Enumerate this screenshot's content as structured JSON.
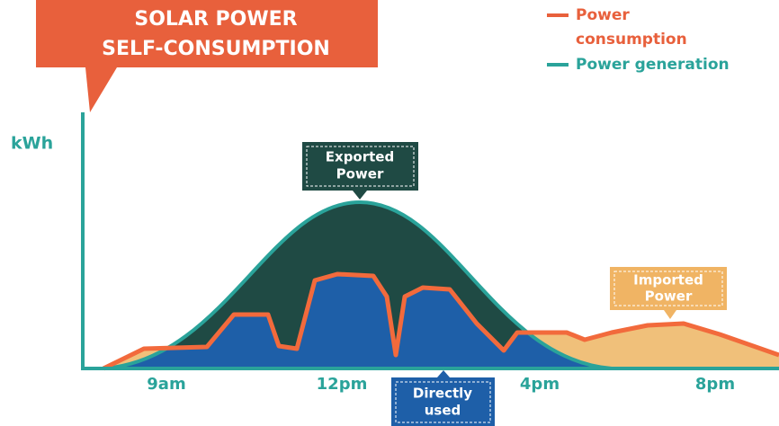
{
  "header": {
    "title_lines": [
      "SOLAR POWER",
      "SELF-CONSUMPTION"
    ]
  },
  "legend": {
    "consumption_lines": [
      "Power",
      "consumption"
    ],
    "generation": "Power generation"
  },
  "axis": {
    "y_label": "kWh",
    "x_labels": [
      "9am",
      "12pm",
      "4pm",
      "8pm"
    ]
  },
  "callouts": {
    "exported": [
      "Exported",
      "Power"
    ],
    "imported": [
      "Imported",
      "Power"
    ],
    "direct": [
      "Directly",
      "used"
    ]
  }
}
